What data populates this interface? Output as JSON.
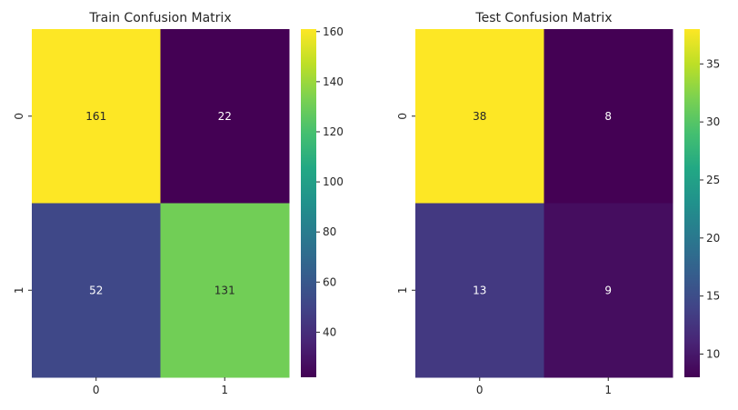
{
  "chart_data": [
    {
      "type": "heatmap",
      "title": "Train Confusion Matrix",
      "xlabel": "",
      "ylabel": "",
      "x_categories": [
        "0",
        "1"
      ],
      "y_categories": [
        "0",
        "1"
      ],
      "values": [
        [
          161,
          22
        ],
        [
          52,
          131
        ]
      ],
      "colormap": "viridis",
      "vmin": 22,
      "vmax": 161,
      "colorbar_ticks": [
        40,
        60,
        80,
        100,
        120,
        140,
        160
      ]
    },
    {
      "type": "heatmap",
      "title": "Test Confusion Matrix",
      "xlabel": "",
      "ylabel": "",
      "x_categories": [
        "0",
        "1"
      ],
      "y_categories": [
        "0",
        "1"
      ],
      "values": [
        [
          38,
          8
        ],
        [
          13,
          9
        ]
      ],
      "colormap": "viridis",
      "vmin": 8,
      "vmax": 38,
      "colorbar_ticks": [
        10,
        15,
        20,
        25,
        30,
        35
      ]
    }
  ]
}
